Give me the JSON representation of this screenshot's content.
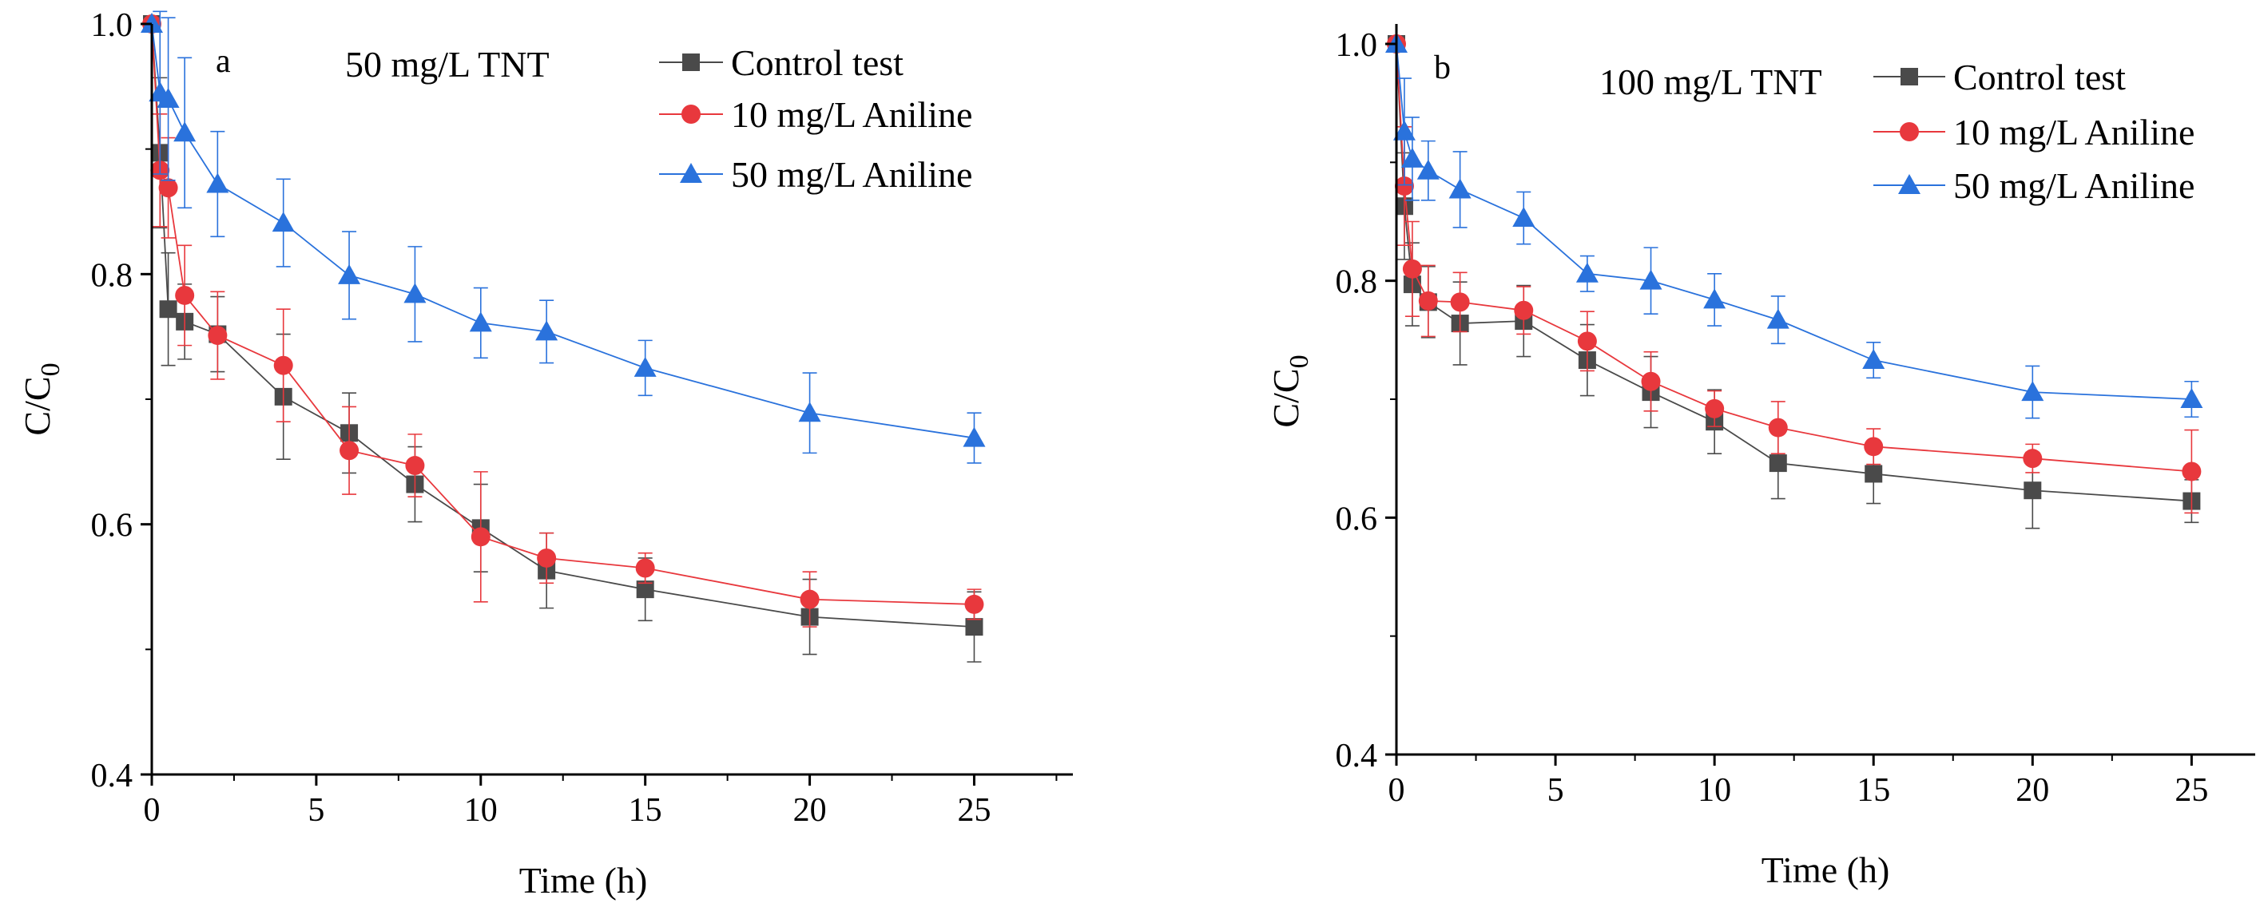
{
  "chart_data": [
    {
      "type": "line",
      "panel_label": "a",
      "condition": "50 mg/L TNT",
      "xlabel": "Time (h)",
      "ylabel": "C/C0",
      "ylabel_main": "C/C",
      "ylabel_sub": "0",
      "xlim": [
        0,
        28
      ],
      "ylim": [
        0.4,
        1.0
      ],
      "xticks": [
        "0",
        "5",
        "10",
        "15",
        "20",
        "25"
      ],
      "yticks": [
        "0.4",
        "0.6",
        "0.8",
        "1.0"
      ],
      "legend_position": "top-right",
      "x": [
        0,
        0.25,
        0.5,
        1,
        2,
        4,
        6,
        8,
        10,
        12,
        15,
        20,
        25
      ],
      "series": [
        {
          "name": "Control test",
          "color": "#4a4a4a",
          "marker": "square",
          "values": [
            1.0,
            0.897,
            0.772,
            0.762,
            0.752,
            0.702,
            0.673,
            0.632,
            0.597,
            0.563,
            0.548,
            0.526,
            0.518
          ],
          "errors": [
            0.0,
            0.06,
            0.045,
            0.03,
            0.03,
            0.05,
            0.032,
            0.03,
            0.035,
            0.03,
            0.025,
            0.03,
            0.028
          ]
        },
        {
          "name": "10 mg/L Aniline",
          "color": "#e8383d",
          "marker": "circle",
          "values": [
            1.0,
            0.883,
            0.869,
            0.783,
            0.751,
            0.727,
            0.659,
            0.647,
            0.59,
            0.573,
            0.565,
            0.54,
            0.536
          ],
          "errors": [
            0.0,
            0.045,
            0.04,
            0.04,
            0.035,
            0.045,
            0.035,
            0.025,
            0.052,
            0.02,
            0.012,
            0.022,
            0.012
          ]
        },
        {
          "name": "50 mg/L Aniline",
          "color": "#2a72dc",
          "marker": "triangle",
          "values": [
            1.0,
            0.945,
            0.94,
            0.913,
            0.872,
            0.841,
            0.799,
            0.784,
            0.761,
            0.754,
            0.725,
            0.689,
            0.669
          ],
          "errors": [
            0.0,
            0.065,
            0.065,
            0.06,
            0.042,
            0.035,
            0.035,
            0.038,
            0.028,
            0.025,
            0.022,
            0.032,
            0.02
          ]
        }
      ]
    },
    {
      "type": "line",
      "panel_label": "b",
      "condition": "100 mg/L TNT",
      "xlabel": "Time (h)",
      "ylabel": "C/C0",
      "ylabel_main": "C/C",
      "ylabel_sub": "0",
      "xlim": [
        0,
        27
      ],
      "ylim": [
        0.4,
        1.0
      ],
      "xticks": [
        "0",
        "5",
        "10",
        "15",
        "20",
        "25"
      ],
      "yticks": [
        "0.4",
        "0.6",
        "0.8",
        "1.0"
      ],
      "legend_position": "top-right",
      "x": [
        0,
        0.25,
        0.5,
        1,
        2,
        4,
        6,
        8,
        10,
        12,
        15,
        20,
        25
      ],
      "series": [
        {
          "name": "Control test",
          "color": "#4a4a4a",
          "marker": "square",
          "values": [
            1.0,
            0.863,
            0.797,
            0.782,
            0.764,
            0.766,
            0.733,
            0.706,
            0.681,
            0.646,
            0.637,
            0.623,
            0.614
          ],
          "errors": [
            0.0,
            0.045,
            0.035,
            0.03,
            0.035,
            0.03,
            0.03,
            0.03,
            0.027,
            0.03,
            0.025,
            0.032,
            0.018
          ]
        },
        {
          "name": "10 mg/L Aniline",
          "color": "#e8383d",
          "marker": "circle",
          "values": [
            1.0,
            0.88,
            0.81,
            0.783,
            0.782,
            0.775,
            0.749,
            0.715,
            0.692,
            0.676,
            0.66,
            0.65,
            0.639
          ],
          "errors": [
            0.0,
            0.05,
            0.04,
            0.03,
            0.025,
            0.02,
            0.025,
            0.025,
            0.015,
            0.022,
            0.015,
            0.012,
            0.035
          ]
        },
        {
          "name": "50 mg/L Aniline",
          "color": "#2a72dc",
          "marker": "triangle",
          "values": [
            1.0,
            0.926,
            0.903,
            0.893,
            0.877,
            0.853,
            0.806,
            0.8,
            0.784,
            0.767,
            0.733,
            0.706,
            0.7
          ],
          "errors": [
            0.0,
            0.045,
            0.035,
            0.025,
            0.032,
            0.022,
            0.015,
            0.028,
            0.022,
            0.02,
            0.015,
            0.022,
            0.015
          ]
        }
      ]
    }
  ]
}
